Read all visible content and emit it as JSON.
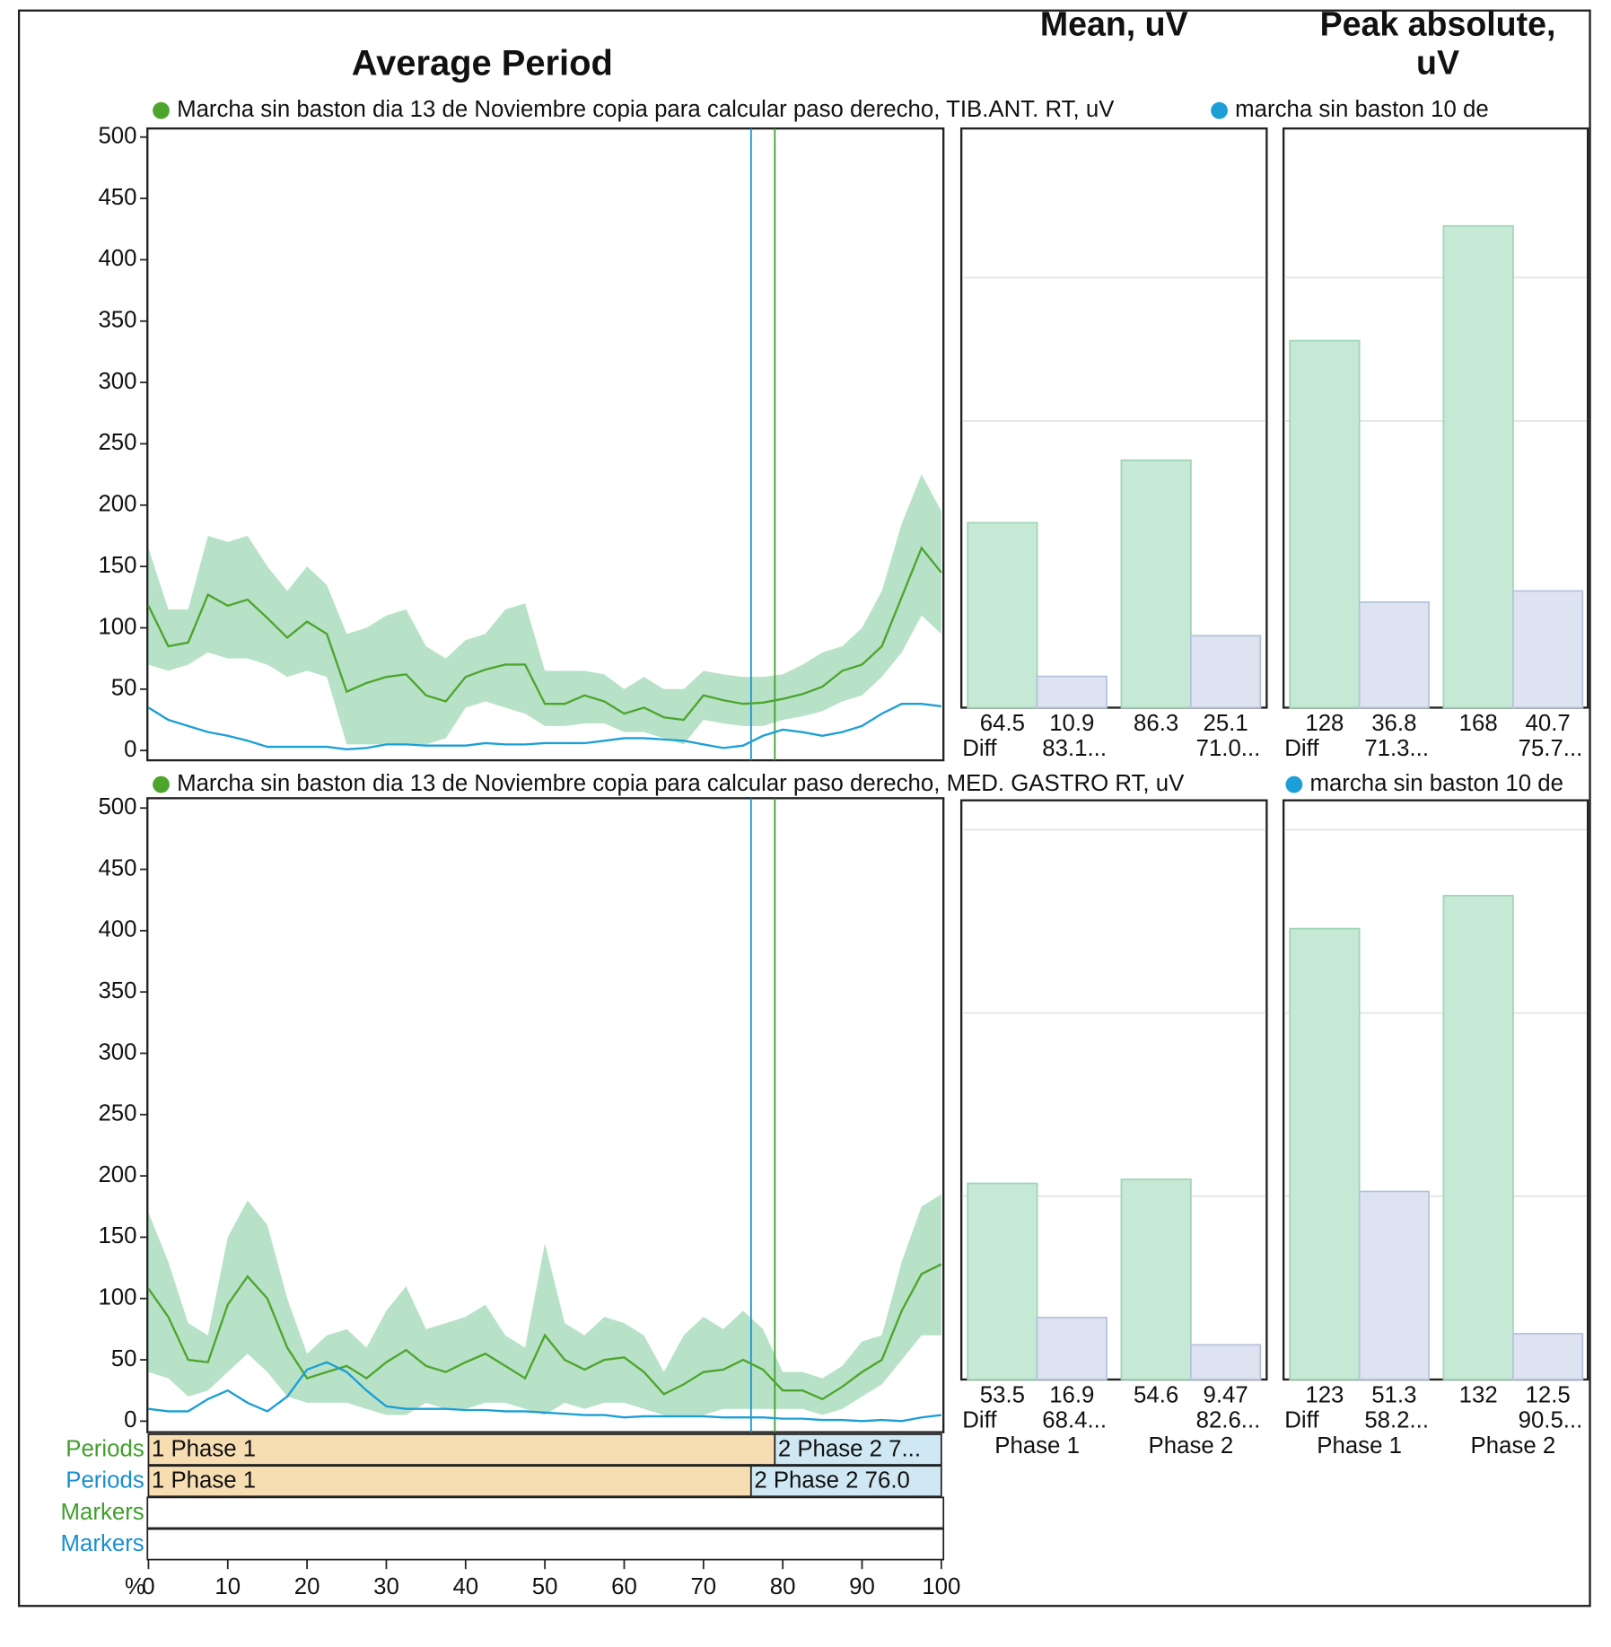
{
  "chart_data": [
    {
      "type": "line",
      "title": "Average Period",
      "x": [
        0,
        2.5,
        5,
        7.5,
        10,
        12.5,
        15,
        17.5,
        20,
        22.5,
        25,
        27.5,
        30,
        32.5,
        35,
        37.5,
        40,
        42.5,
        45,
        47.5,
        50,
        52.5,
        55,
        57.5,
        60,
        62.5,
        65,
        67.5,
        70,
        72.5,
        75,
        77.5,
        80,
        82.5,
        85,
        87.5,
        90,
        92.5,
        95,
        97.5,
        100
      ],
      "xlim": [
        0,
        100
      ],
      "ylim": [
        -8,
        507
      ],
      "yticks": [
        0,
        50,
        100,
        150,
        200,
        250,
        300,
        350,
        400,
        450,
        500
      ],
      "band": {
        "color": "#9fd8b4",
        "upper": [
          165,
          115,
          115,
          175,
          170,
          175,
          150,
          130,
          150,
          135,
          95,
          100,
          110,
          115,
          85,
          75,
          90,
          95,
          115,
          120,
          65,
          65,
          65,
          62,
          50,
          60,
          50,
          50,
          65,
          62,
          60,
          60,
          62,
          70,
          80,
          85,
          100,
          130,
          185,
          225,
          195
        ],
        "lower": [
          70,
          65,
          70,
          80,
          75,
          75,
          70,
          60,
          65,
          60,
          5,
          5,
          5,
          5,
          5,
          10,
          35,
          40,
          35,
          30,
          20,
          20,
          22,
          22,
          15,
          15,
          10,
          5,
          25,
          22,
          20,
          20,
          25,
          28,
          32,
          40,
          45,
          60,
          80,
          110,
          95
        ]
      },
      "series": [
        {
          "name": "Marcha sin baston dia 13 de Noviembre copia para calcular paso derecho, TIB.ANT. RT, uV",
          "color": "#4ea52e",
          "values": [
            118,
            85,
            88,
            127,
            118,
            123,
            108,
            92,
            105,
            95,
            48,
            55,
            60,
            62,
            45,
            40,
            60,
            66,
            70,
            70,
            38,
            38,
            45,
            40,
            30,
            35,
            27,
            25,
            45,
            41,
            38,
            39,
            42,
            46,
            52,
            65,
            70,
            85,
            125,
            165,
            145
          ]
        },
        {
          "name": "marcha sin baston 10 de",
          "color": "#1c9fd6",
          "values": [
            35,
            25,
            20,
            15,
            12,
            8,
            3,
            3,
            3,
            3,
            1,
            2,
            5,
            5,
            4,
            4,
            4,
            6,
            5,
            5,
            6,
            6,
            6,
            8,
            10,
            10,
            9,
            8,
            5,
            2,
            4,
            12,
            17,
            15,
            12,
            15,
            20,
            30,
            38,
            38,
            36
          ]
        }
      ]
    },
    {
      "type": "bar",
      "title": "Mean, uV",
      "categories": [
        null,
        null
      ],
      "ylim": [
        0,
        202
      ],
      "grid": [
        100,
        150
      ],
      "series": [
        {
          "color": "#c6e9d6",
          "values": [
            64.5,
            86.3
          ]
        },
        {
          "color": "#dde3f1",
          "values": [
            10.9,
            25.1
          ]
        }
      ],
      "diff_label": "Diff",
      "diff_labels": [
        "83.1...",
        "71.0..."
      ]
    },
    {
      "type": "bar",
      "title_lines": [
        "Peak absolute,",
        "uV"
      ],
      "categories": [
        null,
        null
      ],
      "ylim": [
        0,
        202
      ],
      "grid": [
        100,
        150
      ],
      "series": [
        {
          "color": "#c6e9d6",
          "values": [
            128,
            168
          ]
        },
        {
          "color": "#dde3f1",
          "values": [
            36.8,
            40.7
          ]
        }
      ],
      "diff_label": "Diff",
      "diff_labels": [
        "71.3...",
        "75.7..."
      ]
    },
    {
      "type": "line",
      "x": [
        0,
        2.5,
        5,
        7.5,
        10,
        12.5,
        15,
        17.5,
        20,
        22.5,
        25,
        27.5,
        30,
        32.5,
        35,
        37.5,
        40,
        42.5,
        45,
        47.5,
        50,
        52.5,
        55,
        57.5,
        60,
        62.5,
        65,
        67.5,
        70,
        72.5,
        75,
        77.5,
        80,
        82.5,
        85,
        87.5,
        90,
        92.5,
        95,
        97.5,
        100
      ],
      "xlim": [
        0,
        100
      ],
      "xticks": [
        0,
        10,
        20,
        30,
        40,
        50,
        60,
        70,
        80,
        90,
        100
      ],
      "xlabel": "%",
      "ylim": [
        -9,
        508
      ],
      "yticks": [
        0,
        50,
        100,
        150,
        200,
        250,
        300,
        350,
        400,
        450,
        500
      ],
      "band": {
        "color": "#9fd8b4",
        "upper": [
          170,
          130,
          80,
          70,
          150,
          180,
          160,
          100,
          55,
          70,
          75,
          60,
          90,
          110,
          75,
          80,
          85,
          95,
          70,
          60,
          145,
          80,
          70,
          85,
          80,
          70,
          40,
          70,
          85,
          75,
          90,
          75,
          40,
          40,
          35,
          45,
          65,
          70,
          130,
          175,
          185
        ],
        "lower": [
          40,
          35,
          20,
          25,
          40,
          55,
          40,
          20,
          15,
          15,
          15,
          10,
          5,
          5,
          15,
          10,
          10,
          15,
          15,
          10,
          5,
          15,
          10,
          15,
          15,
          10,
          5,
          5,
          5,
          10,
          10,
          10,
          10,
          10,
          5,
          10,
          20,
          30,
          50,
          70,
          70
        ]
      },
      "series": [
        {
          "name": "Marcha sin baston dia 13 de Noviembre copia para calcular paso derecho, MED. GASTRO RT, uV",
          "color": "#4ea52e",
          "values": [
            108,
            85,
            50,
            48,
            95,
            118,
            100,
            60,
            35,
            40,
            45,
            35,
            48,
            58,
            45,
            40,
            48,
            55,
            45,
            35,
            70,
            50,
            42,
            50,
            52,
            40,
            22,
            30,
            40,
            42,
            50,
            42,
            25,
            25,
            18,
            28,
            40,
            50,
            90,
            120,
            128
          ]
        },
        {
          "name": "marcha sin baston 10 de",
          "color": "#1c9fd6",
          "values": [
            10,
            8,
            8,
            18,
            25,
            15,
            8,
            20,
            42,
            48,
            40,
            25,
            12,
            10,
            10,
            10,
            9,
            9,
            8,
            8,
            7,
            6,
            5,
            5,
            3,
            4,
            4,
            4,
            4,
            3,
            3,
            3,
            2,
            2,
            1,
            1,
            0,
            1,
            0,
            3,
            5
          ]
        }
      ]
    },
    {
      "type": "bar",
      "categories": [
        "Phase 1",
        "Phase 2"
      ],
      "ylim": [
        0,
        158
      ],
      "grid": [
        50,
        100,
        150
      ],
      "series": [
        {
          "color": "#c6e9d6",
          "values": [
            53.5,
            54.6
          ]
        },
        {
          "color": "#dde3f1",
          "values": [
            16.9,
            9.47
          ]
        }
      ],
      "diff_label": "Diff",
      "diff_labels": [
        "68.4...",
        "82.6..."
      ]
    },
    {
      "type": "bar",
      "categories": [
        "Phase 1",
        "Phase 2"
      ],
      "ylim": [
        0,
        158
      ],
      "grid": [
        50,
        100,
        150
      ],
      "series": [
        {
          "color": "#c6e9d6",
          "values": [
            123,
            132
          ]
        },
        {
          "color": "#dde3f1",
          "values": [
            51.3,
            12.5
          ]
        }
      ],
      "diff_label": "Diff",
      "diff_labels": [
        "58.2...",
        "90.5..."
      ]
    }
  ],
  "periods": [
    {
      "label": "Periods",
      "color": "#3f9f2c",
      "segments": [
        {
          "label": "1 Phase 1",
          "start": 0,
          "end": 79
        },
        {
          "label": "2 Phase 2 7...",
          "start": 79,
          "end": 100
        }
      ]
    },
    {
      "label": "Periods",
      "color": "#1a8fd0",
      "segments": [
        {
          "label": "1 Phase 1",
          "start": 0,
          "end": 76
        },
        {
          "label": "2 Phase 2 76.0",
          "start": 76,
          "end": 100
        }
      ]
    }
  ],
  "markers": [
    {
      "label": "Markers",
      "color": "#3f9f2c"
    },
    {
      "label": "Markers",
      "color": "#1a8fd0"
    }
  ]
}
